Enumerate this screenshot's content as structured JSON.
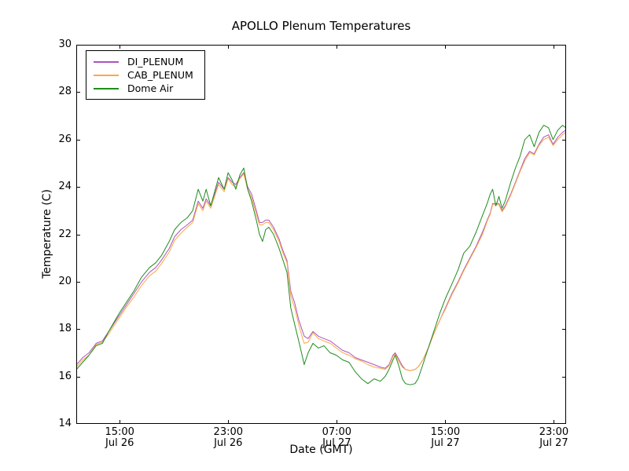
{
  "title": "APOLLO Plenum Temperatures",
  "xlabel": "Date (GMT)",
  "ylabel": "Temperature (C)",
  "chart_data": {
    "type": "line",
    "title": "APOLLO Plenum Temperatures",
    "xlabel": "Date (GMT)",
    "ylabel": "Temperature (C)",
    "x_unit": "hours since Jul 26 00:00 GMT",
    "xlim": [
      11.8,
      47.9
    ],
    "ylim": [
      14,
      30
    ],
    "grid": false,
    "legend_position": "upper left",
    "frame_color": "#000000",
    "yticks": [
      14,
      16,
      18,
      20,
      22,
      24,
      26,
      28,
      30
    ],
    "xticks": [
      {
        "t": 15,
        "line1": "15:00",
        "line2": "Jul 26"
      },
      {
        "t": 23,
        "line1": "23:00",
        "line2": "Jul 26"
      },
      {
        "t": 31,
        "line1": "07:00",
        "line2": "Jul 27"
      },
      {
        "t": 39,
        "line1": "15:00",
        "line2": "Jul 27"
      },
      {
        "t": 47,
        "line1": "23:00",
        "line2": "Jul 27"
      }
    ],
    "x": [
      11.82,
      12.28,
      12.74,
      13.26,
      13.73,
      14.19,
      14.59,
      15.0,
      15.46,
      16.04,
      16.62,
      17.2,
      17.66,
      18.07,
      18.65,
      19.05,
      19.51,
      19.98,
      20.38,
      20.79,
      21.13,
      21.37,
      21.71,
      22.29,
      22.7,
      22.99,
      23.28,
      23.56,
      23.85,
      24.14,
      24.43,
      24.72,
      25.07,
      25.3,
      25.53,
      25.76,
      25.99,
      26.34,
      26.75,
      27.04,
      27.33,
      27.61,
      27.9,
      28.19,
      28.48,
      28.6,
      28.89,
      29.24,
      29.64,
      30.05,
      30.51,
      30.97,
      31.44,
      31.9,
      32.36,
      32.82,
      33.29,
      33.75,
      34.21,
      34.56,
      34.85,
      35.14,
      35.31,
      35.6,
      35.83,
      36.06,
      36.41,
      36.76,
      36.99,
      37.34,
      37.74,
      38.15,
      38.61,
      39.01,
      39.48,
      39.94,
      40.35,
      40.81,
      41.27,
      41.74,
      42.08,
      42.31,
      42.49,
      42.72,
      42.95,
      43.18,
      43.41,
      43.82,
      44.17,
      44.51,
      44.86,
      45.21,
      45.55,
      45.9,
      46.25,
      46.6,
      46.94,
      47.29,
      47.64,
      47.87
    ],
    "series": [
      {
        "name": "DI_PLENUM",
        "color": "#AA55BE",
        "values": [
          16.5,
          16.8,
          17.0,
          17.4,
          17.5,
          17.9,
          18.25,
          18.6,
          19.0,
          19.5,
          20.0,
          20.4,
          20.6,
          20.9,
          21.4,
          21.9,
          22.2,
          22.4,
          22.6,
          23.4,
          23.1,
          23.5,
          23.2,
          24.2,
          23.9,
          24.4,
          24.2,
          24.1,
          24.4,
          24.6,
          24.0,
          23.7,
          23.0,
          22.5,
          22.5,
          22.6,
          22.6,
          22.3,
          21.8,
          21.3,
          20.9,
          19.6,
          19.1,
          18.4,
          17.9,
          17.7,
          17.6,
          17.9,
          17.7,
          17.6,
          17.5,
          17.3,
          17.1,
          17.0,
          16.8,
          16.7,
          16.6,
          16.5,
          16.4,
          16.35,
          16.5,
          16.9,
          17.0,
          16.7,
          16.45,
          16.3,
          16.25,
          16.3,
          16.4,
          16.7,
          17.2,
          17.8,
          18.4,
          18.9,
          19.5,
          20.0,
          20.5,
          21.0,
          21.5,
          22.1,
          22.6,
          22.9,
          23.3,
          23.3,
          23.3,
          23.0,
          23.2,
          23.7,
          24.2,
          24.7,
          25.2,
          25.5,
          25.4,
          25.8,
          26.1,
          26.2,
          25.8,
          26.1,
          26.3,
          26.4
        ]
      },
      {
        "name": "CAB_PLENUM",
        "color": "#FFA743",
        "values": [
          16.4,
          16.7,
          16.9,
          17.35,
          17.45,
          17.8,
          18.15,
          18.5,
          18.9,
          19.35,
          19.85,
          20.25,
          20.45,
          20.75,
          21.25,
          21.75,
          22.05,
          22.3,
          22.5,
          23.3,
          23.0,
          23.4,
          23.1,
          24.1,
          23.8,
          24.35,
          24.1,
          24.0,
          24.35,
          24.55,
          23.9,
          23.55,
          22.85,
          22.4,
          22.4,
          22.5,
          22.5,
          22.2,
          21.7,
          21.2,
          20.8,
          19.4,
          18.9,
          18.2,
          17.6,
          17.4,
          17.45,
          17.85,
          17.6,
          17.5,
          17.4,
          17.2,
          17.0,
          16.9,
          16.75,
          16.65,
          16.5,
          16.4,
          16.35,
          16.3,
          16.45,
          16.85,
          16.95,
          16.6,
          16.4,
          16.3,
          16.25,
          16.3,
          16.4,
          16.7,
          17.2,
          17.8,
          18.4,
          18.85,
          19.45,
          19.95,
          20.45,
          20.95,
          21.45,
          22.0,
          22.55,
          22.85,
          23.25,
          23.25,
          23.25,
          22.95,
          23.15,
          23.65,
          24.15,
          24.65,
          25.1,
          25.45,
          25.35,
          25.75,
          26.0,
          26.1,
          25.75,
          26.0,
          26.2,
          26.3
        ]
      },
      {
        "name": "Dome Air",
        "color": "#1E8C1E",
        "values": [
          16.3,
          16.6,
          16.9,
          17.3,
          17.4,
          17.9,
          18.3,
          18.7,
          19.1,
          19.6,
          20.2,
          20.6,
          20.8,
          21.1,
          21.7,
          22.2,
          22.5,
          22.7,
          23.0,
          23.9,
          23.4,
          23.9,
          23.2,
          24.4,
          23.9,
          24.6,
          24.3,
          23.9,
          24.5,
          24.8,
          23.9,
          23.4,
          22.6,
          22.0,
          21.7,
          22.2,
          22.3,
          22.0,
          21.4,
          20.9,
          20.4,
          18.9,
          18.2,
          17.5,
          16.8,
          16.5,
          17.0,
          17.4,
          17.2,
          17.3,
          17.0,
          16.9,
          16.7,
          16.6,
          16.2,
          15.9,
          15.7,
          15.9,
          15.8,
          16.0,
          16.3,
          16.7,
          16.9,
          16.4,
          15.9,
          15.7,
          15.65,
          15.7,
          15.9,
          16.5,
          17.2,
          17.9,
          18.7,
          19.3,
          19.9,
          20.5,
          21.2,
          21.5,
          22.1,
          22.8,
          23.3,
          23.7,
          23.9,
          23.2,
          23.6,
          23.1,
          23.4,
          24.2,
          24.8,
          25.3,
          26.0,
          26.2,
          25.7,
          26.3,
          26.6,
          26.5,
          26.0,
          26.4,
          26.6,
          26.5
        ]
      }
    ]
  }
}
